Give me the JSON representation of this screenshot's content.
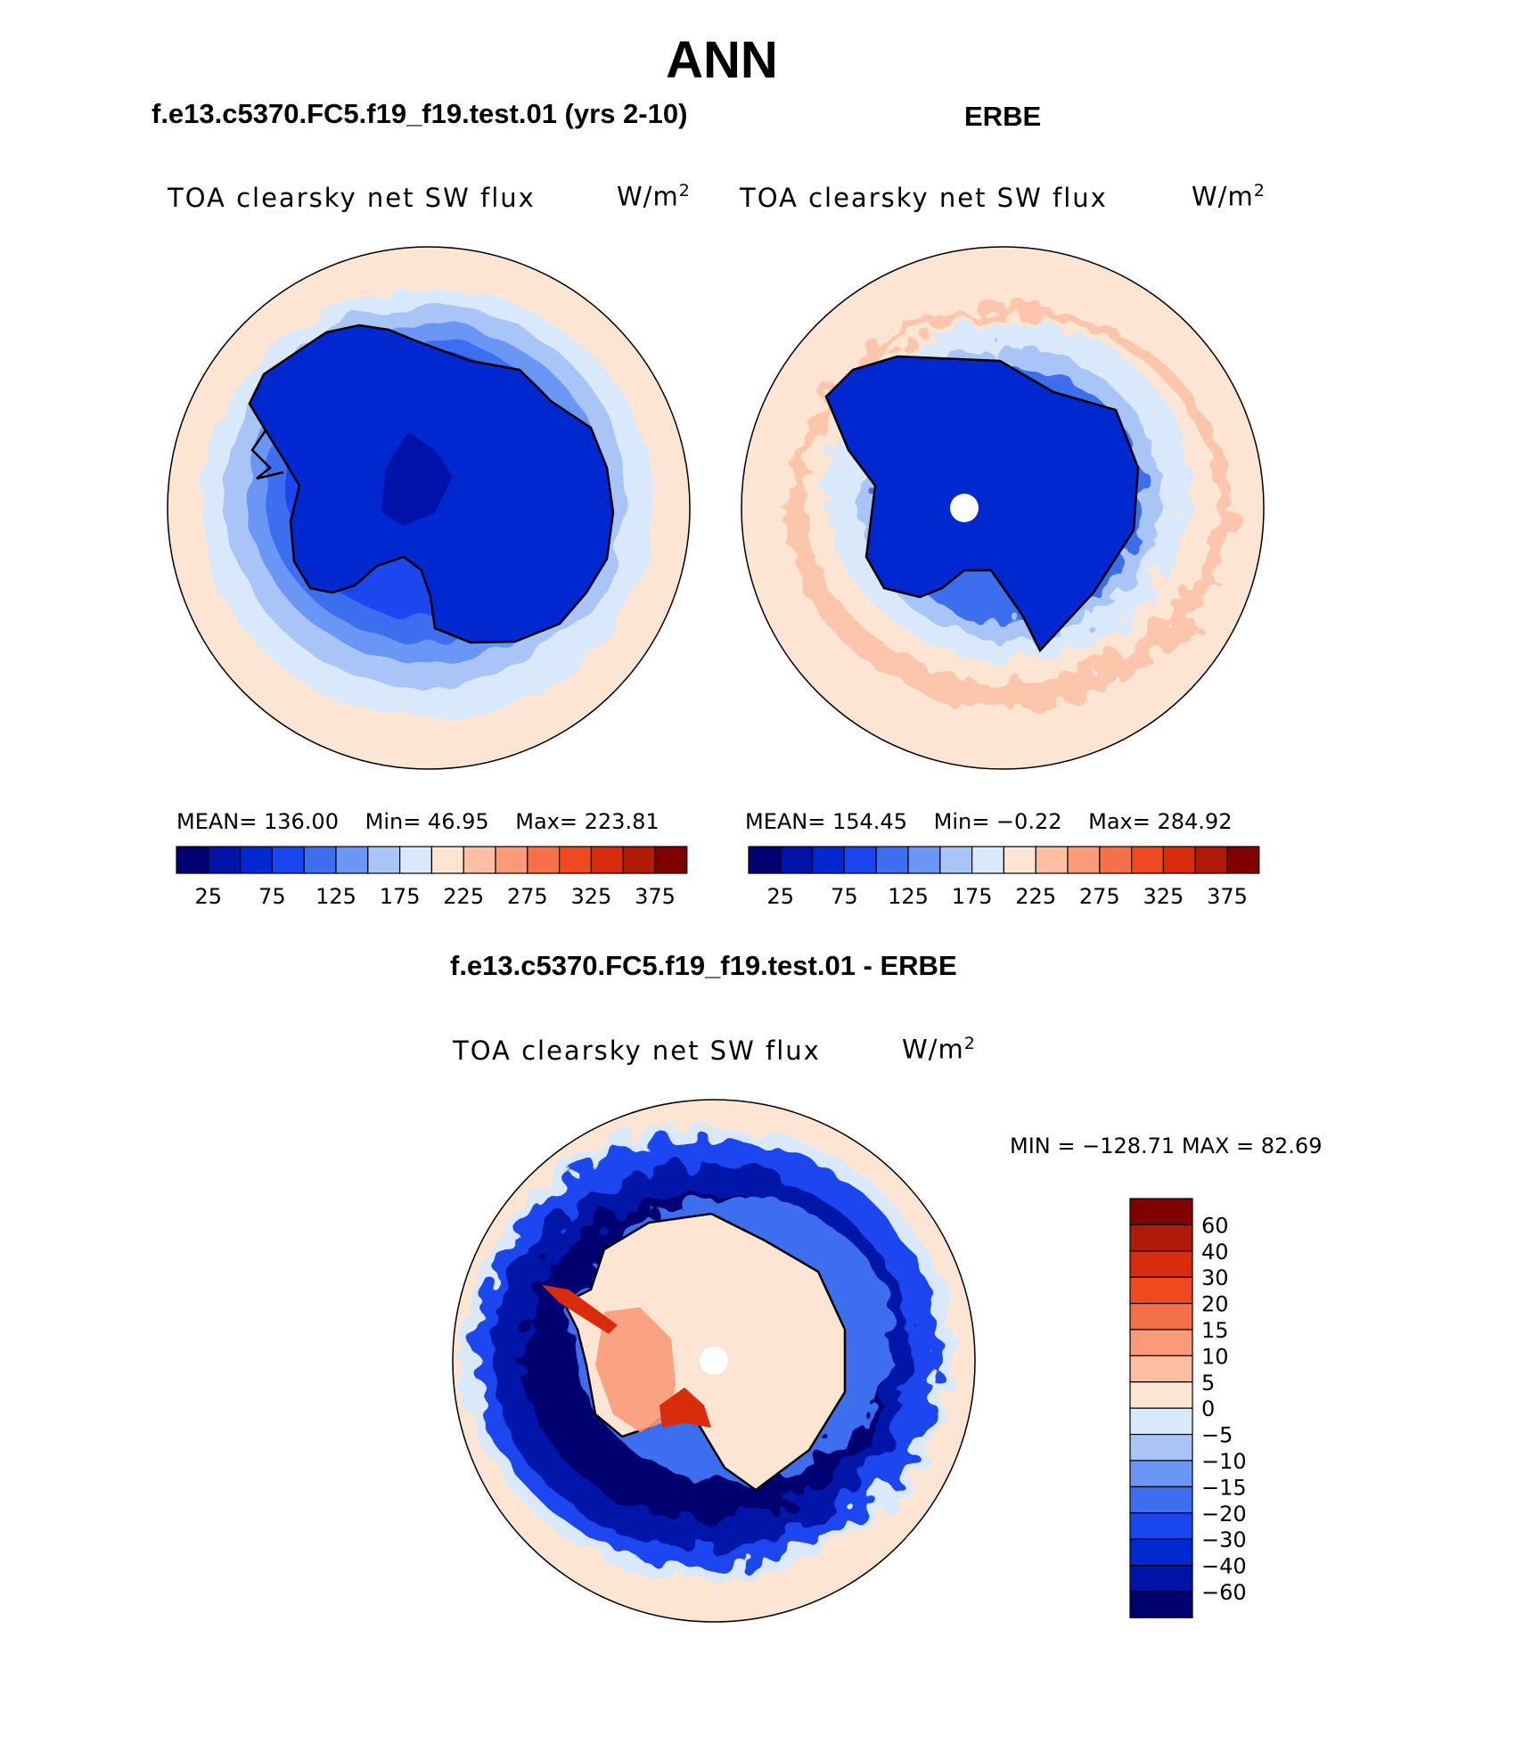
{
  "title": "ANN",
  "panels": [
    {
      "title": "f.e13.c5370.FC5.f19_f19.test.01 (yrs 2-10)",
      "field": "TOA clearsky net SW flux",
      "units_base": "W/m",
      "units_exp": "2",
      "stats": {
        "mean": "MEAN= 136.00",
        "min": "Min=   46.95",
        "max": "Max= 223.81"
      },
      "pole_missing": false
    },
    {
      "title": "ERBE",
      "field": "TOA clearsky net SW flux",
      "units_base": "W/m",
      "units_exp": "2",
      "stats": {
        "mean": "MEAN= 154.45",
        "min": "Min=   −0.22",
        "max": "Max= 284.92"
      },
      "pole_missing": true
    },
    {
      "title": "f.e13.c5370.FC5.f19_f19.test.01 - ERBE",
      "field": "TOA clearsky net SW flux",
      "units_base": "W/m",
      "units_exp": "2",
      "stats": {
        "minmax": "MIN = −128.71 MAX =   82.69"
      },
      "pole_missing": true
    }
  ],
  "colorbar_abs": {
    "colors": [
      "#000070",
      "#0012a8",
      "#0028d0",
      "#1a46f0",
      "#3e6ef0",
      "#6b96f5",
      "#a9c5f7",
      "#d9e9fb",
      "#fde5d4",
      "#fcbfa4",
      "#fa9a78",
      "#f37048",
      "#ee4a1e",
      "#d92c0c",
      "#b21a08",
      "#800000"
    ],
    "tick_labels": [
      "25",
      "75",
      "125",
      "175",
      "225",
      "275",
      "325",
      "375"
    ]
  },
  "colorbar_diff": {
    "colors": [
      "#800000",
      "#b21a08",
      "#d92c0c",
      "#ee4a1e",
      "#f37048",
      "#fa9a78",
      "#fcbfa4",
      "#fde5d4",
      "#d9e9fb",
      "#a9c5f7",
      "#6b96f5",
      "#3e6ef0",
      "#1a46f0",
      "#0028d0",
      "#0012a8",
      "#000070"
    ],
    "tick_labels": [
      "60",
      "40",
      "30",
      "20",
      "15",
      "10",
      "5",
      "0",
      "−5",
      "−10",
      "−15",
      "−20",
      "−30",
      "−40",
      "−60"
    ]
  }
}
